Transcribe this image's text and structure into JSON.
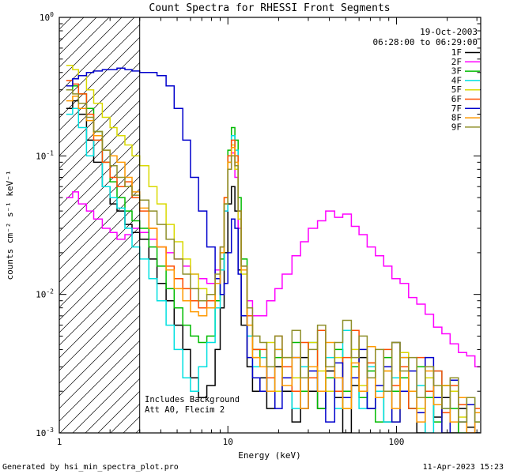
{
  "title": "Count Spectra for RHESSI Front Segments",
  "header": {
    "date": "19-Oct-2003",
    "time_range": "06:28:00 to 06:29:00"
  },
  "annotations": [
    "Includes Background",
    "Att A0, Flecim 2"
  ],
  "footer": {
    "left": "Generated by hsi_min_spectra_plot.pro",
    "right": "11-Apr-2023 15:23"
  },
  "chart_data": {
    "type": "line",
    "mode": "step-histogram",
    "title": "Count Spectra for RHESSI Front Segments",
    "xlabel": "Energy (keV)",
    "ylabel": "counts cm⁻² s⁻¹ keV⁻¹",
    "xscale": "log",
    "yscale": "log",
    "xlim": [
      1,
      316
    ],
    "ylim": [
      0.001,
      1
    ],
    "x_ticks": [
      1,
      10,
      100
    ],
    "x_tick_labels": [
      "1",
      "10",
      "100"
    ],
    "y_tick_exponents": [
      0,
      -1,
      -2,
      -3
    ],
    "hatch_region_kev": [
      1,
      3
    ],
    "legend_position": "top-right-inside",
    "grid": false,
    "x": [
      1.1,
      1.2,
      1.3,
      1.45,
      1.6,
      1.8,
      2.0,
      2.2,
      2.45,
      2.7,
      3.0,
      3.4,
      3.8,
      4.3,
      4.8,
      5.4,
      6.0,
      6.7,
      7.5,
      8.4,
      9.0,
      9.5,
      10.0,
      10.5,
      11.0,
      11.5,
      12.0,
      13.0,
      14.0,
      15.5,
      17.0,
      19.0,
      21.0,
      24.0,
      27.0,
      30.0,
      34.0,
      38.0,
      43.0,
      48.0,
      54.0,
      60.0,
      67.0,
      75.0,
      84.0,
      94.0,
      105,
      118,
      132,
      148,
      166,
      186,
      208,
      233,
      261,
      292
    ],
    "series": [
      {
        "name": "1F",
        "color": "#000000",
        "y": [
          0.22,
          0.25,
          0.2,
          0.13,
          0.09,
          0.06,
          0.045,
          0.04,
          0.032,
          0.028,
          0.025,
          0.018,
          0.012,
          0.009,
          0.006,
          0.004,
          0.0025,
          0.0018,
          0.0022,
          0.004,
          0.008,
          0.02,
          0.045,
          0.06,
          0.04,
          0.015,
          0.006,
          0.003,
          0.002,
          0.0025,
          0.0015,
          0.003,
          0.002,
          0.0012,
          0.0035,
          0.002,
          0.0015,
          0.0028,
          0.0018,
          0.001,
          0.0022,
          0.0035,
          0.0015,
          0.002,
          0.0012,
          0.0045,
          0.0025,
          0.0015,
          0.001,
          0.002,
          0.0013,
          0.0018,
          0.001,
          0.0015,
          0.0011,
          0.001
        ]
      },
      {
        "name": "2F",
        "color": "#ff00ff",
        "y": [
          0.05,
          0.055,
          0.045,
          0.04,
          0.035,
          0.03,
          0.028,
          0.025,
          0.027,
          0.03,
          0.028,
          0.025,
          0.022,
          0.02,
          0.018,
          0.016,
          0.014,
          0.013,
          0.012,
          0.015,
          0.02,
          0.04,
          0.08,
          0.105,
          0.07,
          0.03,
          0.015,
          0.009,
          0.007,
          0.007,
          0.009,
          0.011,
          0.014,
          0.019,
          0.024,
          0.03,
          0.034,
          0.04,
          0.036,
          0.038,
          0.031,
          0.027,
          0.022,
          0.019,
          0.016,
          0.013,
          0.012,
          0.0095,
          0.0085,
          0.0072,
          0.0058,
          0.0052,
          0.0044,
          0.0038,
          0.0036,
          0.003
        ]
      },
      {
        "name": "3F",
        "color": "#00bb00",
        "y": [
          0.3,
          0.32,
          0.28,
          0.22,
          0.15,
          0.09,
          0.065,
          0.05,
          0.04,
          0.034,
          0.03,
          0.022,
          0.016,
          0.011,
          0.008,
          0.006,
          0.005,
          0.0045,
          0.005,
          0.009,
          0.018,
          0.045,
          0.11,
          0.16,
          0.13,
          0.05,
          0.018,
          0.007,
          0.004,
          0.003,
          0.002,
          0.0035,
          0.0025,
          0.0045,
          0.002,
          0.003,
          0.0015,
          0.0025,
          0.004,
          0.002,
          0.003,
          0.0018,
          0.0028,
          0.0012,
          0.0035,
          0.002,
          0.0025,
          0.0015,
          0.003,
          0.0018,
          0.0012,
          0.0022,
          0.0015,
          0.001,
          0.0018,
          0.0012
        ]
      },
      {
        "name": "4F",
        "color": "#00e0e0",
        "y": [
          0.2,
          0.22,
          0.16,
          0.1,
          0.13,
          0.06,
          0.05,
          0.042,
          0.03,
          0.022,
          0.018,
          0.013,
          0.009,
          0.006,
          0.004,
          0.0025,
          0.002,
          0.003,
          0.0045,
          0.008,
          0.015,
          0.04,
          0.09,
          0.14,
          0.11,
          0.04,
          0.015,
          0.005,
          0.003,
          0.0035,
          0.002,
          0.004,
          0.0025,
          0.0015,
          0.003,
          0.0045,
          0.002,
          0.0035,
          0.0015,
          0.0055,
          0.0025,
          0.0015,
          0.003,
          0.002,
          0.0012,
          0.0025,
          0.0035,
          0.0015,
          0.0022,
          0.001,
          0.0028,
          0.0015,
          0.002,
          0.0012,
          0.0018,
          0.001
        ]
      },
      {
        "name": "5F",
        "color": "#d9d900",
        "y": [
          0.45,
          0.42,
          0.38,
          0.3,
          0.24,
          0.19,
          0.16,
          0.14,
          0.12,
          0.1,
          0.085,
          0.06,
          0.045,
          0.032,
          0.024,
          0.018,
          0.014,
          0.011,
          0.01,
          0.013,
          0.02,
          0.05,
          0.09,
          0.12,
          0.08,
          0.035,
          0.014,
          0.006,
          0.0035,
          0.003,
          0.0045,
          0.002,
          0.0035,
          0.0025,
          0.0015,
          0.0045,
          0.0028,
          0.002,
          0.0035,
          0.0015,
          0.004,
          0.0022,
          0.0032,
          0.0018,
          0.0028,
          0.0012,
          0.0038,
          0.002,
          0.0015,
          0.0025,
          0.0018,
          0.001,
          0.002,
          0.0013,
          0.0016,
          0.001
        ]
      },
      {
        "name": "6F",
        "color": "#ff4d00",
        "y": [
          0.35,
          0.33,
          0.28,
          0.2,
          0.13,
          0.09,
          0.07,
          0.06,
          0.065,
          0.05,
          0.04,
          0.03,
          0.022,
          0.016,
          0.013,
          0.011,
          0.009,
          0.008,
          0.009,
          0.012,
          0.022,
          0.05,
          0.1,
          0.13,
          0.1,
          0.04,
          0.016,
          0.007,
          0.004,
          0.004,
          0.0025,
          0.005,
          0.003,
          0.002,
          0.0045,
          0.0025,
          0.0055,
          0.003,
          0.002,
          0.0035,
          0.0055,
          0.002,
          0.0032,
          0.0018,
          0.004,
          0.0022,
          0.003,
          0.0015,
          0.0035,
          0.002,
          0.0028,
          0.0014,
          0.0022,
          0.0016,
          0.001,
          0.0015
        ]
      },
      {
        "name": "7F",
        "color": "#0000cc",
        "y": [
          0.32,
          0.36,
          0.38,
          0.4,
          0.41,
          0.42,
          0.42,
          0.43,
          0.42,
          0.41,
          0.4,
          0.4,
          0.38,
          0.32,
          0.22,
          0.13,
          0.07,
          0.04,
          0.022,
          0.013,
          0.01,
          0.012,
          0.02,
          0.035,
          0.03,
          0.014,
          0.007,
          0.0035,
          0.0025,
          0.002,
          0.003,
          0.0015,
          0.0025,
          0.0035,
          0.0015,
          0.0028,
          0.002,
          0.0012,
          0.0032,
          0.0018,
          0.0025,
          0.004,
          0.0015,
          0.0022,
          0.003,
          0.0012,
          0.002,
          0.0028,
          0.0014,
          0.0035,
          0.0018,
          0.001,
          0.0024,
          0.0012,
          0.0016,
          0.001
        ]
      },
      {
        "name": "8F",
        "color": "#ff9900",
        "y": [
          0.25,
          0.27,
          0.22,
          0.18,
          0.14,
          0.11,
          0.1,
          0.09,
          0.07,
          0.055,
          0.042,
          0.03,
          0.022,
          0.015,
          0.011,
          0.009,
          0.0075,
          0.007,
          0.008,
          0.012,
          0.02,
          0.045,
          0.09,
          0.115,
          0.09,
          0.04,
          0.015,
          0.006,
          0.0035,
          0.003,
          0.002,
          0.004,
          0.0022,
          0.0035,
          0.0015,
          0.003,
          0.002,
          0.0045,
          0.0025,
          0.0015,
          0.0032,
          0.002,
          0.0042,
          0.0018,
          0.0028,
          0.0015,
          0.0035,
          0.002,
          0.0012,
          0.0028,
          0.0016,
          0.0022,
          0.0012,
          0.0018,
          0.001,
          0.0014
        ]
      },
      {
        "name": "9F",
        "color": "#8f8f2a",
        "y": [
          0.3,
          0.28,
          0.24,
          0.19,
          0.15,
          0.11,
          0.085,
          0.07,
          0.06,
          0.052,
          0.048,
          0.04,
          0.032,
          0.025,
          0.018,
          0.014,
          0.011,
          0.009,
          0.01,
          0.014,
          0.022,
          0.045,
          0.08,
          0.1,
          0.085,
          0.04,
          0.016,
          0.008,
          0.005,
          0.0045,
          0.003,
          0.005,
          0.0035,
          0.0055,
          0.0025,
          0.004,
          0.006,
          0.003,
          0.0045,
          0.0065,
          0.0035,
          0.005,
          0.0025,
          0.004,
          0.002,
          0.0045,
          0.0028,
          0.0035,
          0.0018,
          0.003,
          0.0022,
          0.0015,
          0.0025,
          0.0012,
          0.0018,
          0.0012
        ]
      }
    ]
  }
}
